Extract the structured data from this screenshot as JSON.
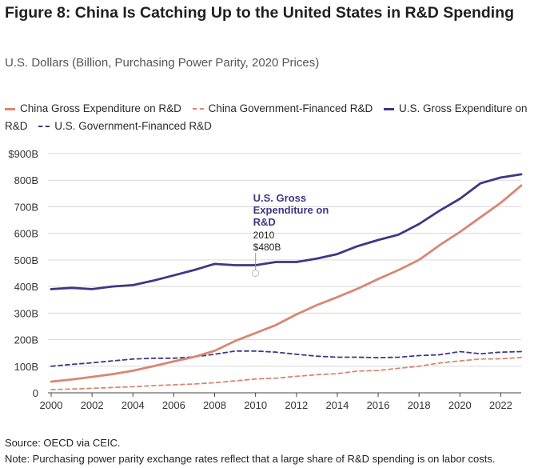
{
  "title": {
    "prefix": "Figure 8:",
    "text": " China Is Catching Up to the United States in R&D Spending"
  },
  "subtitle": "U.S. Dollars (Billion, Purchasing Power Parity, 2020 Prices)",
  "source": "Source: OECD via CEIC.",
  "note": "Note: Purchasing power parity exchange rates reflect that a large share of R&D spending is on labor costs.",
  "annotation": {
    "label": "U.S. Gross Expenditure on R&D",
    "year": "2010",
    "value": "$480B",
    "x": 2010,
    "y": 480
  },
  "chart_data": {
    "type": "line",
    "x": [
      2000,
      2001,
      2002,
      2003,
      2004,
      2005,
      2006,
      2007,
      2008,
      2009,
      2010,
      2011,
      2012,
      2013,
      2014,
      2015,
      2016,
      2017,
      2018,
      2019,
      2020,
      2021,
      2022,
      2023
    ],
    "xticks": [
      2000,
      2002,
      2004,
      2006,
      2008,
      2010,
      2012,
      2014,
      2016,
      2018,
      2020,
      2022
    ],
    "ylim": [
      0,
      900
    ],
    "yticks": [
      0,
      100,
      200,
      300,
      400,
      500,
      600,
      700,
      800,
      900
    ],
    "ytick_labels": [
      "0",
      "100B",
      "200B",
      "300B",
      "400B",
      "500B",
      "600B",
      "700B",
      "800B",
      "$900B"
    ],
    "series": [
      {
        "name": "China Gross Expenditure on R&D",
        "color": "#d98672",
        "style": "solid",
        "values": [
          42,
          50,
          60,
          70,
          83,
          100,
          118,
          135,
          158,
          195,
          225,
          255,
          295,
          330,
          360,
          392,
          428,
          462,
          500,
          555,
          605,
          660,
          715,
          780
        ]
      },
      {
        "name": "China Government-Financed R&D",
        "color": "#d98672",
        "style": "dashed",
        "values": [
          12,
          14,
          17,
          20,
          23,
          27,
          30,
          33,
          38,
          45,
          52,
          55,
          62,
          68,
          72,
          82,
          84,
          92,
          100,
          112,
          120,
          127,
          128,
          133
        ]
      },
      {
        "name": "U.S. Gross Expenditure on R&D",
        "color": "#3f3685",
        "style": "solid",
        "values": [
          390,
          395,
          390,
          400,
          405,
          422,
          442,
          462,
          485,
          480,
          480,
          492,
          492,
          505,
          522,
          552,
          575,
          595,
          635,
          685,
          730,
          788,
          810,
          822
        ]
      },
      {
        "name": "U.S. Government-Financed R&D",
        "color": "#3f3685",
        "style": "dashed",
        "values": [
          100,
          107,
          113,
          120,
          127,
          130,
          130,
          135,
          145,
          157,
          157,
          153,
          145,
          138,
          134,
          134,
          132,
          134,
          140,
          143,
          155,
          147,
          153,
          155
        ]
      }
    ]
  }
}
